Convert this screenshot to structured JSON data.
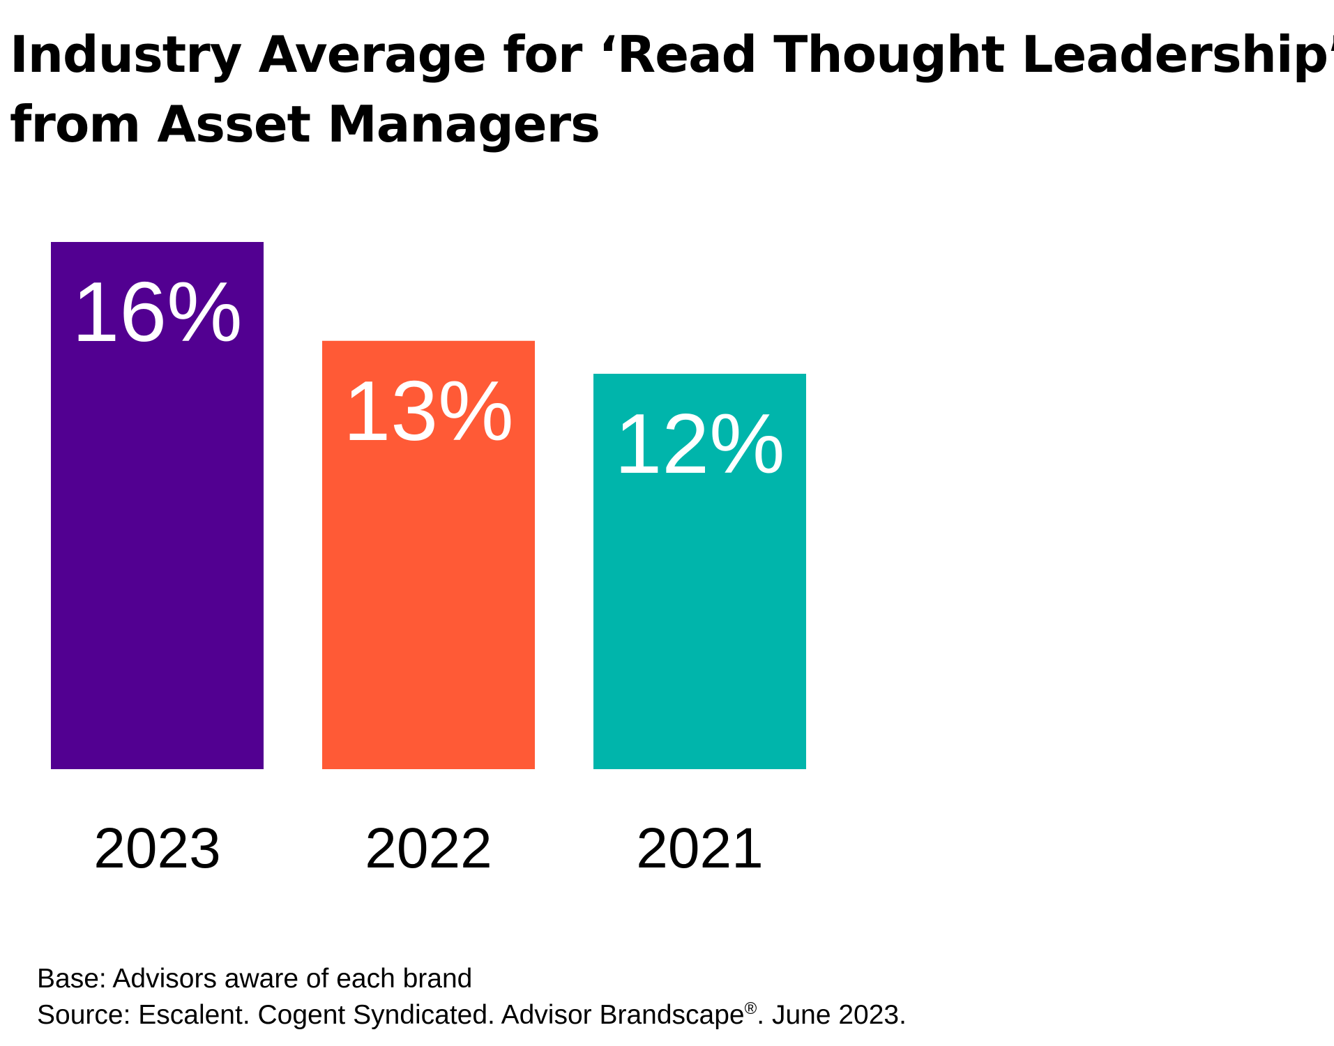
{
  "title_lines": [
    "Industry Average for ‘Read Thought Leadership’",
    "from Asset Managers"
  ],
  "chart_data": {
    "type": "bar",
    "title": "Industry Average for ‘Read Thought Leadership’ from Asset Managers",
    "categories": [
      "2023",
      "2022",
      "2021"
    ],
    "values": [
      16,
      13,
      12
    ],
    "data_labels": [
      "16%",
      "13%",
      "12%"
    ],
    "colors": [
      "#520091",
      "#FF5A36",
      "#00B5AB"
    ],
    "xlabel": "",
    "ylabel": "",
    "ylim": [
      0,
      16
    ],
    "grid": false,
    "legend": "none"
  },
  "footnotes": {
    "base": "Base: Advisors aware of each brand",
    "source_prefix": "Source: Escalent. Cogent Syndicated. Advisor Brandscape",
    "source_mark": "®",
    "source_suffix": ". June 2023."
  }
}
